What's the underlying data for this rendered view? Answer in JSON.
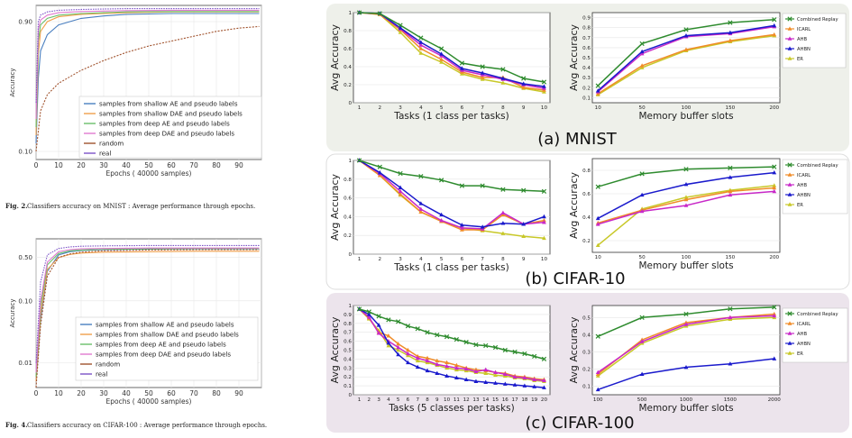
{
  "left": {
    "mnist": {
      "ylabel": "Accuracy",
      "xlabel": "Epochs  ( 40000 samples)",
      "caption_label": "Fig. 2.",
      "caption_text": "Classifiers accuracy on MNIST : Average performance through epochs.",
      "xticks": [
        "0",
        "10",
        "20",
        "30",
        "40",
        "50",
        "60",
        "70",
        "80",
        "90"
      ],
      "yticks": [
        "0.10",
        "0.90"
      ],
      "legend": [
        {
          "label": "samples from shallow AE and pseudo labels",
          "color": "#4a7fc0"
        },
        {
          "label": "samples from shallow DAE and pseudo labels",
          "color": "#f0a04b"
        },
        {
          "label": "samples from deep AE and pseudo labels",
          "color": "#6abf6a"
        },
        {
          "label": "samples from deep DAE and pseudo labels",
          "color": "#e07ad0"
        },
        {
          "label": "random",
          "color": "#a0522d"
        },
        {
          "label": "real",
          "color": "#7b52c7"
        }
      ],
      "series": [
        {
          "name": "samples from shallow AE and pseudo labels",
          "color": "#4a7fc0",
          "x": [
            0,
            1,
            2,
            5,
            10,
            20,
            30,
            40,
            60,
            99
          ],
          "y": [
            0.15,
            0.55,
            0.72,
            0.82,
            0.88,
            0.92,
            0.935,
            0.945,
            0.95,
            0.95
          ]
        },
        {
          "name": "samples from shallow DAE and pseudo labels",
          "color": "#f0a04b",
          "x": [
            0,
            1,
            2,
            5,
            10,
            20,
            30,
            40,
            60,
            99
          ],
          "y": [
            0.2,
            0.7,
            0.84,
            0.9,
            0.93,
            0.945,
            0.95,
            0.955,
            0.96,
            0.96
          ]
        },
        {
          "name": "samples from deep AE and pseudo labels",
          "color": "#6abf6a",
          "x": [
            0,
            1,
            2,
            5,
            10,
            20,
            30,
            40,
            60,
            99
          ],
          "y": [
            0.25,
            0.78,
            0.88,
            0.92,
            0.94,
            0.95,
            0.955,
            0.96,
            0.962,
            0.962
          ]
        },
        {
          "name": "samples from deep DAE and pseudo labels",
          "color": "#e07ad0",
          "x": [
            0,
            1,
            2,
            5,
            10,
            20,
            30,
            40,
            60,
            99
          ],
          "y": [
            0.3,
            0.85,
            0.91,
            0.94,
            0.955,
            0.962,
            0.965,
            0.968,
            0.97,
            0.97
          ]
        },
        {
          "name": "random",
          "color": "#a0522d",
          "x": [
            0,
            2,
            5,
            10,
            20,
            30,
            40,
            50,
            60,
            70,
            80,
            90,
            99
          ],
          "y": [
            0.1,
            0.35,
            0.45,
            0.52,
            0.6,
            0.66,
            0.71,
            0.75,
            0.78,
            0.81,
            0.84,
            0.86,
            0.87
          ]
        },
        {
          "name": "real",
          "color": "#7b52c7",
          "x": [
            0,
            1,
            2,
            5,
            10,
            20,
            30,
            40,
            60,
            99
          ],
          "y": [
            0.4,
            0.9,
            0.94,
            0.96,
            0.97,
            0.975,
            0.978,
            0.98,
            0.98,
            0.98
          ]
        }
      ]
    },
    "cifar": {
      "ylabel": "Accuracy",
      "xlabel": "Epochs  ( 40000 samples)",
      "caption_label": "Fig. 4.",
      "caption_text": "Classifiers accuracy on CIFAR-100 : Average performance through epochs.",
      "xticks": [
        "0",
        "10",
        "20",
        "30",
        "40",
        "50",
        "60",
        "70",
        "80",
        "90"
      ],
      "yticks": [
        "0.50",
        "0.10",
        "0.01"
      ],
      "legend": [
        {
          "label": "samples from shallow AE and pseudo labels",
          "color": "#4a7fc0"
        },
        {
          "label": "samples from shallow DAE and pseudo labels",
          "color": "#f0a04b"
        },
        {
          "label": "samples from deep AE and pseudo labels",
          "color": "#6abf6a"
        },
        {
          "label": "samples from deep DAE and pseudo labels",
          "color": "#e07ad0"
        },
        {
          "label": "random",
          "color": "#a0522d"
        },
        {
          "label": "real",
          "color": "#7b52c7"
        }
      ],
      "series": [
        {
          "name": "samples from shallow AE and pseudo labels",
          "color": "#4a7fc0",
          "x": [
            0,
            2,
            5,
            10,
            15,
            20,
            30,
            50,
            70,
            99
          ],
          "y": [
            0.005,
            0.05,
            0.3,
            0.55,
            0.62,
            0.65,
            0.67,
            0.68,
            0.69,
            0.69
          ]
        },
        {
          "name": "samples from shallow DAE and pseudo labels",
          "color": "#f0a04b",
          "x": [
            0,
            2,
            5,
            10,
            15,
            20,
            30,
            50,
            70,
            99
          ],
          "y": [
            0.005,
            0.06,
            0.32,
            0.5,
            0.56,
            0.59,
            0.61,
            0.62,
            0.63,
            0.63
          ]
        },
        {
          "name": "samples from deep AE and pseudo labels",
          "color": "#6abf6a",
          "x": [
            0,
            2,
            5,
            10,
            15,
            20,
            30,
            50,
            70,
            99
          ],
          "y": [
            0.006,
            0.08,
            0.38,
            0.58,
            0.64,
            0.66,
            0.68,
            0.69,
            0.7,
            0.7
          ]
        },
        {
          "name": "samples from deep DAE and pseudo labels",
          "color": "#e07ad0",
          "x": [
            0,
            2,
            5,
            10,
            15,
            20,
            30,
            50,
            70,
            99
          ],
          "y": [
            0.007,
            0.1,
            0.42,
            0.62,
            0.67,
            0.69,
            0.7,
            0.71,
            0.71,
            0.71
          ]
        },
        {
          "name": "random",
          "color": "#a0522d",
          "x": [
            0,
            2,
            5,
            10,
            15,
            20,
            30,
            50,
            70,
            99
          ],
          "y": [
            0.004,
            0.04,
            0.25,
            0.5,
            0.57,
            0.61,
            0.64,
            0.66,
            0.67,
            0.67
          ]
        },
        {
          "name": "real",
          "color": "#7b52c7",
          "x": [
            0,
            2,
            5,
            10,
            15,
            20,
            30,
            50,
            70,
            99
          ],
          "y": [
            0.01,
            0.2,
            0.55,
            0.7,
            0.74,
            0.76,
            0.77,
            0.78,
            0.78,
            0.78
          ]
        }
      ]
    }
  },
  "chart_data": [
    {
      "type": "line",
      "panel": "mnist-tasks",
      "ylabel": "Avg Accuracy",
      "xlabel": "Tasks (1 class per tasks)",
      "ylim": [
        0,
        1
      ],
      "yticks": [
        0.0,
        0.2,
        0.4,
        0.6,
        0.8,
        1.0
      ],
      "categories": [
        "1",
        "2",
        "3",
        "4",
        "5",
        "6",
        "7",
        "8",
        "9",
        "10"
      ],
      "series": [
        {
          "name": "Combined Replay",
          "color": "#2e8b2e",
          "values": [
            1.0,
            0.99,
            0.86,
            0.72,
            0.6,
            0.44,
            0.4,
            0.37,
            0.27,
            0.23
          ]
        },
        {
          "name": "ICARL",
          "color": "#f08c28",
          "values": [
            1.0,
            0.98,
            0.81,
            0.6,
            0.48,
            0.34,
            0.28,
            0.28,
            0.17,
            0.14
          ]
        },
        {
          "name": "AHB",
          "color": "#c828c8",
          "values": [
            1.0,
            0.99,
            0.82,
            0.64,
            0.52,
            0.36,
            0.31,
            0.26,
            0.2,
            0.16
          ]
        },
        {
          "name": "AHBN",
          "color": "#1a1acc",
          "values": [
            1.0,
            0.99,
            0.83,
            0.67,
            0.54,
            0.38,
            0.33,
            0.27,
            0.21,
            0.18
          ]
        },
        {
          "name": "ER",
          "color": "#c8c828",
          "values": [
            1.0,
            0.98,
            0.78,
            0.55,
            0.45,
            0.32,
            0.26,
            0.22,
            0.16,
            0.12
          ]
        }
      ]
    },
    {
      "type": "line",
      "panel": "mnist-memory",
      "ylabel": "Avg Accuracy",
      "xlabel": "Memory buffer slots",
      "ylim": [
        0.05,
        0.95
      ],
      "yticks": [
        0.1,
        0.2,
        0.3,
        0.4,
        0.5,
        0.6,
        0.7,
        0.8,
        0.9
      ],
      "categories": [
        "10",
        "50",
        "100",
        "150",
        "200"
      ],
      "legend": "top-right",
      "series": [
        {
          "name": "Combined Replay",
          "color": "#2e8b2e",
          "values": [
            0.22,
            0.64,
            0.78,
            0.85,
            0.88
          ]
        },
        {
          "name": "ICARL",
          "color": "#f08c28",
          "values": [
            0.14,
            0.42,
            0.58,
            0.67,
            0.73
          ]
        },
        {
          "name": "AHB",
          "color": "#c828c8",
          "values": [
            0.16,
            0.54,
            0.71,
            0.74,
            0.81
          ]
        },
        {
          "name": "AHBN",
          "color": "#1a1acc",
          "values": [
            0.17,
            0.56,
            0.72,
            0.75,
            0.82
          ]
        },
        {
          "name": "ER",
          "color": "#c8c828",
          "values": [
            0.13,
            0.4,
            0.57,
            0.66,
            0.72
          ]
        }
      ]
    },
    {
      "type": "line",
      "panel": "cifar10-tasks",
      "ylabel": "Avg Accuracy",
      "xlabel": "Tasks (1 class per tasks)",
      "ylim": [
        0,
        1
      ],
      "yticks": [
        0.0,
        0.2,
        0.4,
        0.6,
        0.8,
        1.0
      ],
      "categories": [
        "1",
        "2",
        "3",
        "4",
        "5",
        "6",
        "7",
        "8",
        "9",
        "10"
      ],
      "series": [
        {
          "name": "Combined Replay",
          "color": "#2e8b2e",
          "values": [
            1.0,
            0.93,
            0.86,
            0.83,
            0.79,
            0.73,
            0.73,
            0.69,
            0.68,
            0.67
          ]
        },
        {
          "name": "ICARL",
          "color": "#f08c28",
          "values": [
            1.0,
            0.84,
            0.64,
            0.45,
            0.35,
            0.26,
            0.26,
            0.42,
            0.32,
            0.36
          ]
        },
        {
          "name": "AHB",
          "color": "#c828c8",
          "values": [
            1.0,
            0.86,
            0.67,
            0.48,
            0.36,
            0.28,
            0.27,
            0.44,
            0.32,
            0.34
          ]
        },
        {
          "name": "AHBN",
          "color": "#1a1acc",
          "values": [
            1.0,
            0.87,
            0.71,
            0.54,
            0.42,
            0.31,
            0.29,
            0.33,
            0.32,
            0.4
          ]
        },
        {
          "name": "ER",
          "color": "#c8c828",
          "values": [
            1.0,
            0.84,
            0.63,
            0.45,
            0.35,
            0.28,
            0.25,
            0.22,
            0.19,
            0.17
          ]
        }
      ]
    },
    {
      "type": "line",
      "panel": "cifar10-memory",
      "ylabel": "Avg Accuracy",
      "xlabel": "Memory buffer slots",
      "ylim": [
        0.1,
        0.9
      ],
      "yticks": [
        0.2,
        0.4,
        0.6,
        0.8
      ],
      "categories": [
        "10",
        "50",
        "100",
        "150",
        "200"
      ],
      "legend": "top-left",
      "series": [
        {
          "name": "Combined Replay",
          "color": "#2e8b2e",
          "values": [
            0.66,
            0.77,
            0.81,
            0.82,
            0.83
          ]
        },
        {
          "name": "ICARL",
          "color": "#f08c28",
          "values": [
            0.35,
            0.46,
            0.55,
            0.62,
            0.65
          ]
        },
        {
          "name": "AHB",
          "color": "#c828c8",
          "values": [
            0.34,
            0.45,
            0.5,
            0.59,
            0.62
          ]
        },
        {
          "name": "AHBN",
          "color": "#1a1acc",
          "values": [
            0.39,
            0.59,
            0.68,
            0.74,
            0.78
          ]
        },
        {
          "name": "ER",
          "color": "#c8c828",
          "values": [
            0.16,
            0.47,
            0.57,
            0.63,
            0.67
          ]
        }
      ]
    },
    {
      "type": "line",
      "panel": "cifar100-tasks",
      "ylabel": "Avg Accuracy",
      "xlabel": "Tasks (5 classes per tasks)",
      "ylim": [
        0,
        1
      ],
      "yticks": [
        0.0,
        0.1,
        0.2,
        0.3,
        0.4,
        0.5,
        0.6,
        0.7,
        0.8,
        0.9,
        1.0
      ],
      "categories": [
        "1",
        "2",
        "3",
        "4",
        "5",
        "6",
        "7",
        "8",
        "9",
        "10",
        "11",
        "12",
        "13",
        "14",
        "15",
        "16",
        "17",
        "18",
        "19",
        "20"
      ],
      "series": [
        {
          "name": "Combined Replay",
          "color": "#2e8b2e",
          "values": [
            0.96,
            0.93,
            0.88,
            0.84,
            0.82,
            0.77,
            0.74,
            0.7,
            0.67,
            0.65,
            0.62,
            0.59,
            0.56,
            0.55,
            0.53,
            0.5,
            0.48,
            0.46,
            0.43,
            0.4
          ]
        },
        {
          "name": "ICARL",
          "color": "#f08c28",
          "values": [
            0.96,
            0.86,
            0.7,
            0.66,
            0.57,
            0.5,
            0.43,
            0.41,
            0.38,
            0.36,
            0.33,
            0.3,
            0.28,
            0.27,
            0.25,
            0.24,
            0.21,
            0.2,
            0.18,
            0.17
          ]
        },
        {
          "name": "AHB",
          "color": "#c828c8",
          "values": [
            0.96,
            0.87,
            0.69,
            0.6,
            0.53,
            0.46,
            0.41,
            0.38,
            0.34,
            0.32,
            0.3,
            0.29,
            0.26,
            0.28,
            0.25,
            0.23,
            0.2,
            0.19,
            0.17,
            0.16
          ]
        },
        {
          "name": "AHBN",
          "color": "#1a1acc",
          "values": [
            0.96,
            0.9,
            0.78,
            0.58,
            0.45,
            0.36,
            0.31,
            0.27,
            0.24,
            0.21,
            0.19,
            0.17,
            0.15,
            0.14,
            0.13,
            0.12,
            0.11,
            0.1,
            0.09,
            0.08
          ]
        },
        {
          "name": "ER",
          "color": "#c8c828",
          "values": [
            0.96,
            0.85,
            0.72,
            0.55,
            0.5,
            0.44,
            0.38,
            0.36,
            0.33,
            0.3,
            0.28,
            0.27,
            0.25,
            0.24,
            0.22,
            0.21,
            0.19,
            0.18,
            0.16,
            0.15
          ]
        }
      ]
    },
    {
      "type": "line",
      "panel": "cifar100-memory",
      "ylabel": "Avg Accuracy",
      "xlabel": "Memory buffer slots",
      "ylim": [
        0.05,
        0.57
      ],
      "yticks": [
        0.1,
        0.2,
        0.3,
        0.4,
        0.5
      ],
      "categories": [
        "100",
        "500",
        "1000",
        "1500",
        "2000"
      ],
      "legend": "top-right",
      "series": [
        {
          "name": "Combined Replay",
          "color": "#2e8b2e",
          "values": [
            0.39,
            0.5,
            0.52,
            0.55,
            0.56
          ]
        },
        {
          "name": "ICARL",
          "color": "#f08c28",
          "values": [
            0.17,
            0.37,
            0.47,
            0.5,
            0.52
          ]
        },
        {
          "name": "AHB",
          "color": "#c828c8",
          "values": [
            0.18,
            0.36,
            0.46,
            0.5,
            0.51
          ]
        },
        {
          "name": "AHBN",
          "color": "#1a1acc",
          "values": [
            0.08,
            0.17,
            0.21,
            0.23,
            0.26
          ]
        },
        {
          "name": "ER",
          "color": "#c8c828",
          "values": [
            0.16,
            0.35,
            0.45,
            0.49,
            0.5
          ]
        }
      ]
    }
  ],
  "panel_titles": {
    "mnist": "(a) MNIST",
    "cifar10": "(b) CIFAR-10",
    "cifar100": "(c) CIFAR-100"
  },
  "legend_names": [
    "Combined Replay",
    "ICARL",
    "AHB",
    "AHBN",
    "ER"
  ],
  "colors": {
    "mnist_bg": "#eef0ea",
    "cifar10_bg": "#ffffff",
    "cifar100_bg": "#ece4ec"
  }
}
